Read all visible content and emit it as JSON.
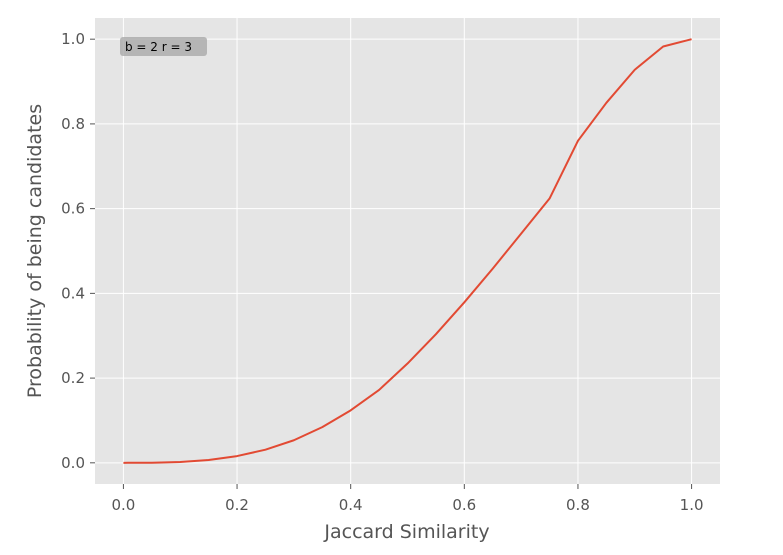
{
  "chart_data": {
    "type": "line",
    "title": "",
    "xlabel": "Jaccard Similarity",
    "ylabel": "Probability of being candidates",
    "xlim": [
      -0.05,
      1.05
    ],
    "ylim": [
      -0.05,
      1.05
    ],
    "xticks": [
      "0.0",
      "0.2",
      "0.4",
      "0.6",
      "0.8",
      "1.0"
    ],
    "yticks": [
      "0.0",
      "0.2",
      "0.4",
      "0.6",
      "0.8",
      "1.0"
    ],
    "grid": true,
    "annotation": "b = 2 r = 3",
    "series": [
      {
        "color": "#E24A33",
        "x": [
          0.0,
          0.05,
          0.1,
          0.15,
          0.2,
          0.25,
          0.3,
          0.35,
          0.4,
          0.45,
          0.5,
          0.55,
          0.6,
          0.65,
          0.7,
          0.75,
          0.8,
          0.85,
          0.9,
          0.95,
          1.0
        ],
        "y": [
          0.0,
          0.0003,
          0.002,
          0.0067,
          0.0159,
          0.031,
          0.0533,
          0.0843,
          0.1239,
          0.172,
          0.2344,
          0.3037,
          0.3789,
          0.4584,
          0.5411,
          0.6238,
          0.7601,
          0.8498,
          0.9278,
          0.9828,
          1.0
        ]
      }
    ]
  }
}
